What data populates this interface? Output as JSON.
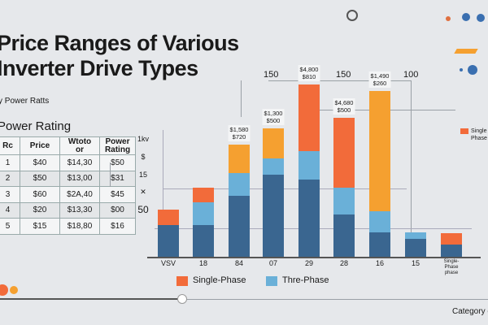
{
  "title_lines": [
    "Price Ranges of Various",
    "Inverter Drive Types"
  ],
  "subtitle": "y Power Ratts",
  "section_title": "Power Rating",
  "table": {
    "headers": [
      "Rc",
      "Price",
      "Wtoto or",
      "Power Rating"
    ],
    "rows": [
      [
        "1",
        "$40",
        "$14,30",
        "$50"
      ],
      [
        "2",
        "$50",
        "$13,00",
        "$31"
      ],
      [
        "3",
        "$60",
        "$2A,40",
        "$45"
      ],
      [
        "4",
        "$20",
        "$13,30",
        "$00"
      ],
      [
        "5",
        "$15",
        "$18,80",
        "$16"
      ]
    ]
  },
  "colors": {
    "single": "#f26b3a",
    "amber": "#f5a030",
    "three": "#6ab0d8",
    "base": "#3a6690",
    "background": "#e6e8eb"
  },
  "chart_data": {
    "type": "bar",
    "stacked": true,
    "categories": [
      "VSV",
      "18",
      "84",
      "07",
      "29",
      "28",
      "16",
      "15",
      "Single-Phase phase"
    ],
    "series": [
      {
        "values": [
          34,
          34,
          65,
          87,
          82,
          45,
          26,
          19,
          13
        ],
        "color": "#3a6690"
      },
      {
        "name": "Thre-Phase",
        "values": [
          0,
          24,
          24,
          17,
          30,
          28,
          22,
          7,
          0
        ],
        "color": "#6ab0d8"
      },
      {
        "name": "Single-Phase",
        "values": [
          16,
          15,
          30,
          32,
          71,
          74,
          128,
          0,
          12
        ],
        "colors": [
          "#f26b3a",
          "#f26b3a",
          "#f5a030",
          "#f5a030",
          "#f26b3a",
          "#f26b3a",
          "#f5a030",
          "#f26b3a",
          "#f26b3a"
        ]
      }
    ],
    "y_tick_labels": [
      "1kv",
      "$",
      "15",
      "✕",
      "50"
    ],
    "top_labels": [
      "150",
      "150",
      "100"
    ],
    "annotations": [
      {
        "category": "84",
        "lines": [
          "$1,580",
          "$720"
        ]
      },
      {
        "category": "07",
        "lines": [
          "$1,300",
          "$500"
        ]
      },
      {
        "category": "29",
        "lines": [
          "$4,800",
          "$810"
        ]
      },
      {
        "category": "28",
        "lines": [
          "$4,680",
          "$500"
        ]
      },
      {
        "category": "16",
        "lines": [
          "$1,490",
          "$260"
        ]
      }
    ],
    "ylim": [
      0,
      200
    ],
    "legend": [
      "Single-Phase",
      "Thre-Phase"
    ],
    "side_legend": "Single Phase",
    "xlabel": "Category of"
  }
}
